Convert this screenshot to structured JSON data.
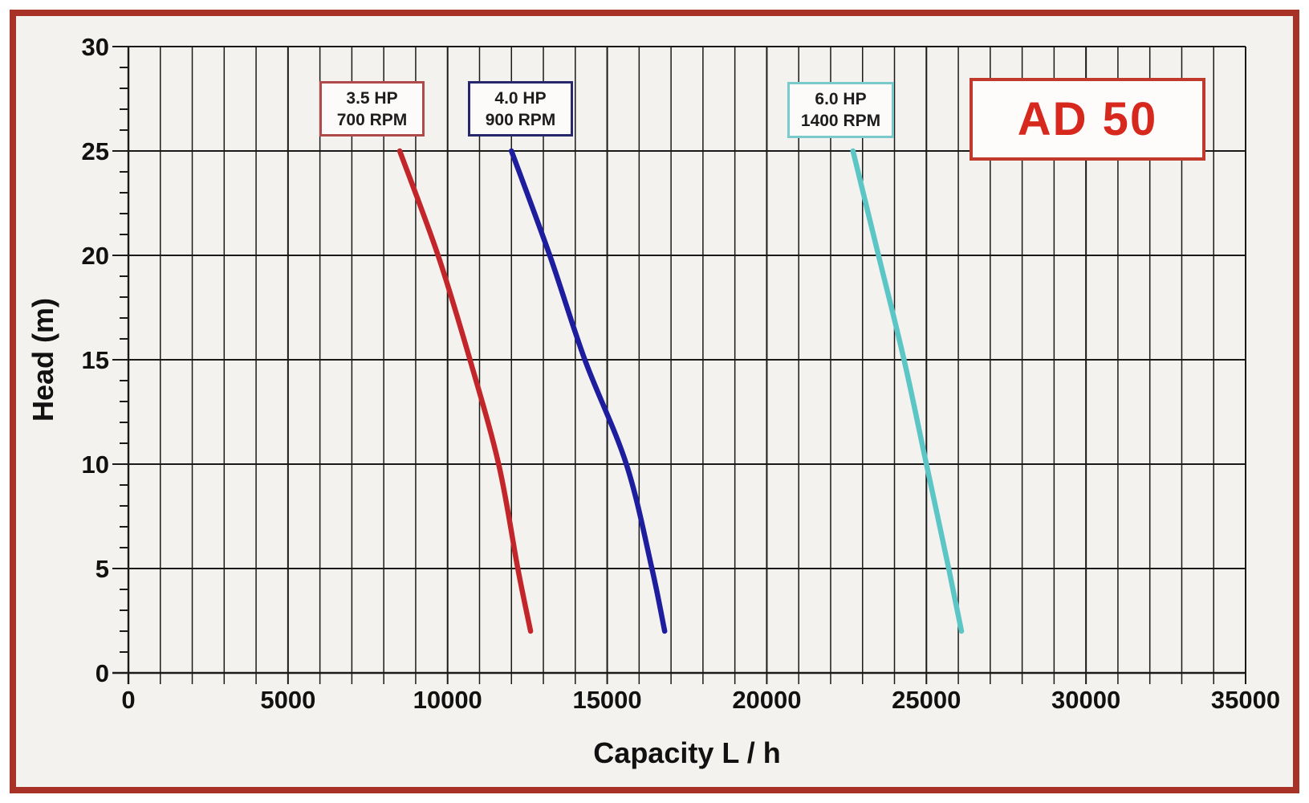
{
  "model_badge": "AD 50",
  "colors": {
    "frame_border": "#a93226",
    "background": "#f4f2ee",
    "grid": "#1a1a1a",
    "badge_text": "#d7281e",
    "badge_border": "#c0392b"
  },
  "chart_data": {
    "type": "line",
    "title": "AD 50",
    "xlabel": "Capacity  L / h",
    "ylabel": "Head (m)",
    "xlim": [
      0,
      35000
    ],
    "ylim": [
      0,
      30
    ],
    "x_major_step": 5000,
    "x_minor_step": 1000,
    "y_major_step": 5,
    "y_minor_step": 1,
    "x_ticks": [
      0,
      5000,
      10000,
      15000,
      20000,
      25000,
      30000,
      35000
    ],
    "y_ticks": [
      0,
      5,
      10,
      15,
      20,
      25,
      30
    ],
    "grid": "vertical lines every 1000 L/h; horizontal lines every 5 m; minor y ticks every 1 m",
    "legend_position": "label boxes above each curve",
    "series": [
      {
        "name": "3.5 HP 700 RPM",
        "label_line1": "3.5 HP",
        "label_line2": "700 RPM",
        "color": "#c2262b",
        "points": [
          [
            8500,
            25
          ],
          [
            9700,
            20
          ],
          [
            10700,
            15
          ],
          [
            11600,
            10
          ],
          [
            12200,
            5
          ],
          [
            12600,
            2
          ]
        ]
      },
      {
        "name": "4.0 HP 900 RPM",
        "label_line1": "4.0 HP",
        "label_line2": "900 RPM",
        "color": "#1d1d9e",
        "points": [
          [
            12000,
            25
          ],
          [
            13200,
            20
          ],
          [
            14300,
            15
          ],
          [
            15600,
            10
          ],
          [
            16400,
            5
          ],
          [
            16800,
            2
          ]
        ]
      },
      {
        "name": "6.0 HP 1400 RPM",
        "label_line1": "6.0 HP",
        "label_line2": "1400 RPM",
        "color": "#5cc6c6",
        "points": [
          [
            22700,
            25
          ],
          [
            23500,
            20
          ],
          [
            24300,
            15
          ],
          [
            25000,
            10
          ],
          [
            25700,
            5
          ],
          [
            26100,
            2
          ]
        ]
      }
    ]
  }
}
